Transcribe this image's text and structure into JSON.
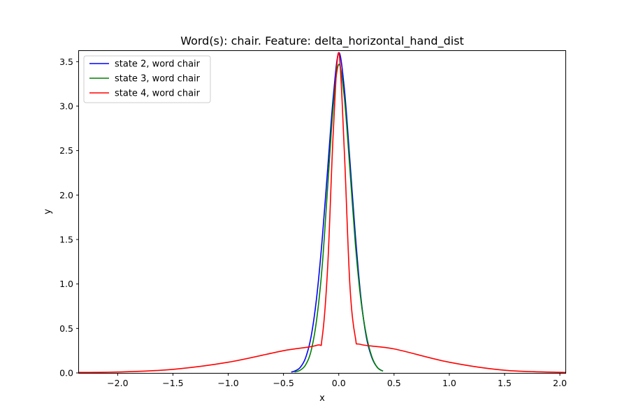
{
  "chart_data": {
    "type": "line",
    "title": "Word(s): chair. Feature: delta_horizontal_hand_dist",
    "xlabel": "x",
    "ylabel": "y",
    "xlim": [
      -2.35,
      2.05
    ],
    "ylim": [
      0,
      3.62
    ],
    "xticks": [
      -2.0,
      -1.5,
      -1.0,
      -0.5,
      0.0,
      0.5,
      1.0,
      1.5,
      2.0
    ],
    "xtick_labels": [
      "−2.0",
      "−1.5",
      "−1.0",
      "−0.5",
      "0.0",
      "0.5",
      "1.0",
      "1.5",
      "2.0"
    ],
    "yticks": [
      0.0,
      0.5,
      1.0,
      1.5,
      2.0,
      2.5,
      3.0,
      3.5
    ],
    "ytick_labels": [
      "0.0",
      "0.5",
      "1.0",
      "1.5",
      "2.0",
      "2.5",
      "3.0",
      "3.5"
    ],
    "grid": false,
    "legend_position": "top-left",
    "series": [
      {
        "name": "state 2, word chair",
        "color": "#0000ff",
        "x": [
          -0.43,
          -0.4,
          -0.35,
          -0.3,
          -0.25,
          -0.2,
          -0.15,
          -0.1,
          -0.05,
          0.0,
          0.05,
          0.1,
          0.15,
          0.2,
          0.25,
          0.3,
          0.35,
          0.4
        ],
        "y": [
          0.01,
          0.02,
          0.06,
          0.17,
          0.41,
          0.85,
          1.5,
          2.3,
          3.1,
          3.6,
          3.2,
          2.4,
          1.55,
          0.85,
          0.4,
          0.17,
          0.06,
          0.02
        ]
      },
      {
        "name": "state 3, word chair",
        "color": "#008000",
        "x": [
          -0.4,
          -0.35,
          -0.3,
          -0.25,
          -0.2,
          -0.15,
          -0.1,
          -0.05,
          0.0,
          0.05,
          0.1,
          0.15,
          0.2,
          0.25,
          0.3,
          0.35,
          0.4
        ],
        "y": [
          0.01,
          0.03,
          0.09,
          0.25,
          0.6,
          1.2,
          2.1,
          3.0,
          3.47,
          3.1,
          2.3,
          1.45,
          0.82,
          0.42,
          0.18,
          0.06,
          0.02
        ]
      },
      {
        "name": "state 4, word chair",
        "color": "#ff0000",
        "x": [
          -2.35,
          -2.0,
          -1.5,
          -1.0,
          -0.5,
          -0.2,
          -0.15,
          -0.1,
          -0.05,
          0.0,
          0.05,
          0.1,
          0.15,
          0.2,
          0.5,
          1.0,
          1.5,
          2.05
        ],
        "y": [
          0.005,
          0.01,
          0.04,
          0.12,
          0.25,
          0.31,
          0.4,
          1.2,
          2.7,
          3.6,
          2.5,
          1.0,
          0.4,
          0.32,
          0.27,
          0.12,
          0.03,
          0.005
        ]
      }
    ]
  }
}
